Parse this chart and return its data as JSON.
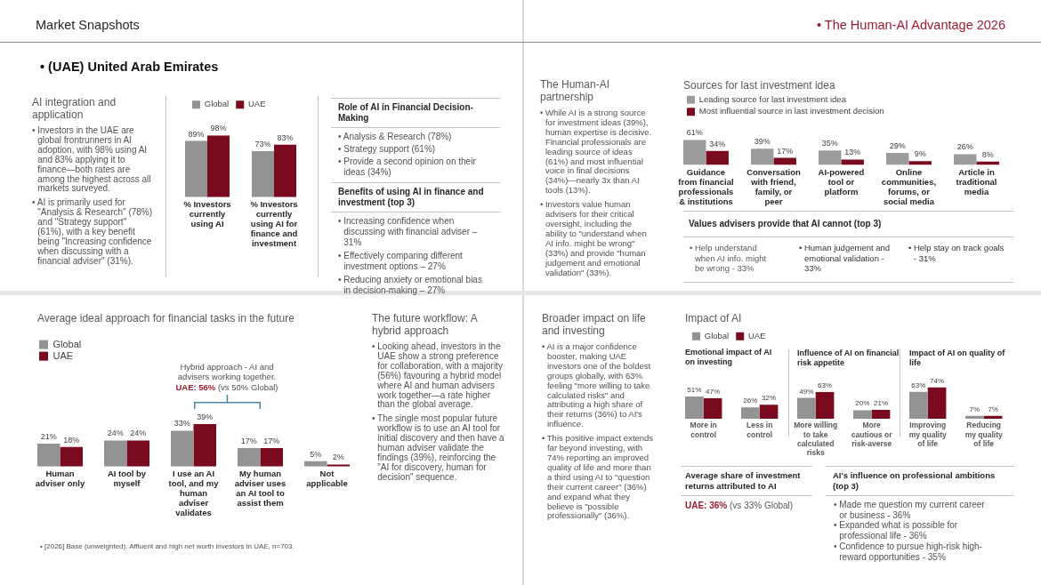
{
  "chart_data": [
    {
      "type": "other",
      "title": "Market Snapshots",
      "annotations": [
        "• The Human-AI Advantage 2026",
        "• (UAE) United Arab Emirates"
      ]
    },
    {
      "type": "other",
      "title": "AI integration and application",
      "annotations": [
        "• Investors in the UAE are global frontrunners in AI adoption, with 98% using AI and 83% applying it to finance—both rates are among the highest across all markets surveyed.",
        "• AI is primarily used for \"Analysis & Research\" (78%) and \"Strategy support\" (61%), with a key benefit being \"Increasing confidence when discussing with a financial adviser\" (31%)."
      ]
    },
    {
      "type": "bar",
      "categories": [
        "% Investors currently using AI",
        "% Investors currently using AI for finance and investment"
      ],
      "series": [
        {
          "name": "Global",
          "color": "#939393",
          "values": [
            89,
            73
          ],
          "value_labels": [
            "89%",
            "73%"
          ]
        },
        {
          "name": "UAE",
          "color": "#7a0a1e",
          "values": [
            98,
            83
          ],
          "value_labels": [
            "98%",
            "83%"
          ]
        }
      ],
      "legend": "top left"
    },
    {
      "type": "other",
      "title": "Role of AI in Financial Decision-Making",
      "annotations": [
        "• Analysis & Research (78%)",
        "• Strategy support (61%)",
        "• Provide a second opinion on their ideas (34%)"
      ]
    },
    {
      "type": "other",
      "title": "Benefits of using AI in finance and investment (top 3)",
      "annotations": [
        "• Increasing confidence when discussing with financial adviser – 31%",
        "• Effectively comparing different investment options – 27%",
        "• Reducing anxiety or emotional bias in decision-making – 27%"
      ]
    },
    {
      "type": "other",
      "title": "The Human-AI partnership",
      "annotations": [
        "• While AI is a strong source for investment ideas (39%), human expertise is decisive. Financial professionals are leading source of ideas (61%) and most influential voice in final decisions (34%)—nearly 3x than AI tools (13%).",
        "• Investors value human advisers for their critical oversight, including the ability to \"understand when AI info. might be wrong\" (33%) and provide \"human judgement and emotional validation\" (33%)."
      ]
    },
    {
      "type": "bar",
      "title": "Sources for last investment idea",
      "categories": [
        "Guidance from financial professionals & institutions",
        "Conversation with friend, family, or peer",
        "AI-powered tool or platform",
        "Online communities, forums, or social media",
        "Article in traditional media"
      ],
      "series": [
        {
          "name": "Leading source for last investment idea",
          "color": "#9c9c9c",
          "values": [
            61,
            39,
            35,
            29,
            26
          ],
          "value_labels": [
            "61%",
            "39%",
            "35%",
            "29%",
            "26%"
          ]
        },
        {
          "name": "Most influential source in last investment decision",
          "color": "#7a0a1e",
          "values": [
            34,
            17,
            13,
            9,
            8
          ],
          "value_labels": [
            "34%",
            "17%",
            "13%",
            "9%",
            "8%"
          ]
        }
      ],
      "legend": "top left"
    },
    {
      "type": "other",
      "title": "Values advisers provide that AI cannot (top 3)",
      "annotations": [
        "• Help understand when AI info. might be wrong - 33%",
        "• Human judgement and emotional validation - 33%",
        "• Help stay on track goals - 31%"
      ]
    },
    {
      "type": "bar",
      "title": "Average ideal approach for financial tasks in the future",
      "categories": [
        "Human adviser only",
        "AI tool by myself",
        "I use an AI tool, and my human adviser validates",
        "My human adviser uses an AI tool to assist them",
        "Not applicable"
      ],
      "series": [
        {
          "name": "Global",
          "color": "#939393",
          "values": [
            21,
            24,
            33,
            17,
            5
          ],
          "value_labels": [
            "21%",
            "24%",
            "33%",
            "17%",
            "5%"
          ]
        },
        {
          "name": "UAE",
          "color": "#7a0a1e",
          "values": [
            18,
            24,
            39,
            17,
            2
          ],
          "value_labels": [
            "18%",
            "24%",
            "39%",
            "17%",
            "2%"
          ]
        }
      ],
      "legend": "top left",
      "annotations": [
        "Hybrid approach - AI and advisers working together.",
        "UAE: 56%",
        "(vs 50% Global)"
      ]
    },
    {
      "type": "other",
      "title": "The future workflow: A hybrid approach",
      "annotations": [
        "• Looking ahead, investors in the UAE show a strong preference for collaboration, with a majority (56%) favouring a hybrid model where AI and human advisers work together—a rate higher than the global average.",
        "• The single most popular future workflow is to use an AI tool for initial discovery and then have a human adviser validate the findings (39%), reinforcing the \"AI for discovery, human for decision\" sequence."
      ]
    },
    {
      "type": "other",
      "title": "Broader impact on life and investing",
      "annotations": [
        "• AI is a major confidence booster, making UAE investors one of the boldest groups globally, with 63% feeling \"more willing to take calculated risks\" and attributing a high share of their returns (36%) to AI's influence.",
        "• This positive impact extends far beyond investing, with 74% reporting an improved quality of life and more than a third using AI to \"question their current career\" (36%) and expand what they believe is \"possible professionally\" (36%)."
      ]
    },
    {
      "type": "bar",
      "title": "Impact of AI",
      "subtitle": "Emotional impact of AI on investing",
      "categories": [
        "More in control",
        "Less in control"
      ],
      "series": [
        {
          "name": "Global",
          "color": "#939393",
          "values": [
            51,
            26
          ],
          "value_labels": [
            "51%",
            "26%"
          ]
        },
        {
          "name": "UAE",
          "color": "#7a0a1e",
          "values": [
            47,
            32
          ],
          "value_labels": [
            "47%",
            "32%"
          ]
        }
      ],
      "legend": "top left"
    },
    {
      "type": "bar",
      "title": "Influence of AI on financial risk appetite",
      "categories": [
        "More willing to take calculated risks",
        "More cautious or risk-averse"
      ],
      "series": [
        {
          "color": "#939393",
          "values": [
            49,
            20
          ],
          "value_labels": [
            "49%",
            "20%"
          ]
        },
        {
          "color": "#7a0a1e",
          "values": [
            63,
            21
          ],
          "value_labels": [
            "63%",
            "21%"
          ]
        }
      ]
    },
    {
      "type": "bar",
      "title": "Impact of AI on quality of life",
      "categories": [
        "Improving my quality of life",
        "Reducing my quality of life"
      ],
      "series": [
        {
          "color": "#939393",
          "values": [
            63,
            7
          ],
          "value_labels": [
            "63%",
            "7%"
          ]
        },
        {
          "color": "#7a0a1e",
          "values": [
            74,
            7
          ],
          "value_labels": [
            "74%",
            "7%"
          ]
        }
      ]
    },
    {
      "type": "other",
      "title": "Average share of investment returns attributed to AI",
      "annotations": [
        "UAE: 36%",
        "(vs 33% Global)"
      ]
    },
    {
      "type": "other",
      "title": "AI's influence on professional ambitions (top 3)",
      "annotations": [
        "• Made me question my current career or business - 36%",
        "• Expanded what is possible for professional life - 36%",
        "• Confidence to pursue high-risk high-reward opportunities - 35%"
      ]
    },
    {
      "type": "other",
      "annotations": [
        "• [2026] Base (unweighted): Affluent and high net worth investors in UAE, n=703."
      ]
    }
  ]
}
